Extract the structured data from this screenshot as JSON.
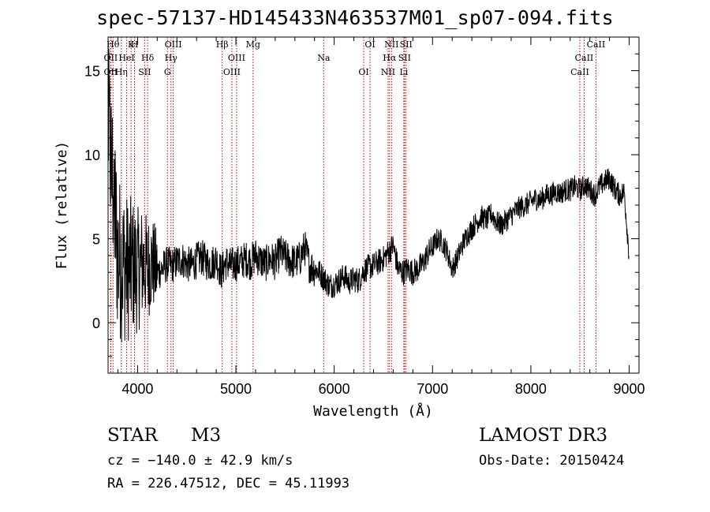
{
  "chart_data": {
    "type": "line",
    "title": "spec-57137-HD145433N463537M01_sp07-094.fits",
    "xlabel": "Wavelength (Å)",
    "ylabel": "Flux (relative)",
    "xlim": [
      3700,
      9100
    ],
    "ylim": [
      -3.0,
      17.0
    ],
    "x_ticks": [
      4000,
      5000,
      6000,
      7000,
      8000,
      9000
    ],
    "y_ticks": [
      0,
      5,
      10,
      15
    ],
    "x_tick_labels": [
      "4000",
      "5000",
      "6000",
      "7000",
      "8000",
      "9000"
    ],
    "y_tick_labels": [
      "0",
      "5",
      "10",
      "15"
    ],
    "series": [
      {
        "name": "flux",
        "x": [
          3700,
          3750,
          3800,
          3850,
          3900,
          3950,
          4000,
          4050,
          4100,
          4150,
          4200,
          4250,
          4300,
          4350,
          4400,
          4450,
          4500,
          4550,
          4600,
          4650,
          4700,
          4750,
          4800,
          4850,
          4900,
          4950,
          5000,
          5050,
          5100,
          5150,
          5200,
          5250,
          5300,
          5350,
          5400,
          5450,
          5500,
          5550,
          5600,
          5650,
          5700,
          5750,
          5800,
          5850,
          5900,
          5950,
          6000,
          6050,
          6100,
          6150,
          6200,
          6250,
          6300,
          6350,
          6400,
          6450,
          6500,
          6550,
          6600,
          6650,
          6700,
          6750,
          6800,
          6850,
          6900,
          6950,
          7000,
          7050,
          7100,
          7150,
          7200,
          7250,
          7300,
          7350,
          7400,
          7450,
          7500,
          7550,
          7600,
          7650,
          7700,
          7750,
          7800,
          7850,
          7900,
          7950,
          8000,
          8050,
          8100,
          8150,
          8200,
          8250,
          8300,
          8350,
          8400,
          8450,
          8500,
          8550,
          8600,
          8650,
          8700,
          8750,
          8800,
          8850,
          8900,
          8950,
          9000
        ],
        "y": [
          12,
          8,
          4,
          3.5,
          3.2,
          3.4,
          3.1,
          3.5,
          3.3,
          3.6,
          3.0,
          3.2,
          3.5,
          3.4,
          3.6,
          3.8,
          3.5,
          3.4,
          3.7,
          3.9,
          3.6,
          3.5,
          3.8,
          3.0,
          3.6,
          3.4,
          3.5,
          3.6,
          3.8,
          3.6,
          4.0,
          3.7,
          3.5,
          3.8,
          3.6,
          4.2,
          3.9,
          3.7,
          3.6,
          3.8,
          4.5,
          3.4,
          3.2,
          3.0,
          2.6,
          2.2,
          2.3,
          2.5,
          2.8,
          2.4,
          2.6,
          2.5,
          3.1,
          3.3,
          3.4,
          3.6,
          3.8,
          4.2,
          4.6,
          3.2,
          3.0,
          3.2,
          3.0,
          3.2,
          3.5,
          4.1,
          4.5,
          5.0,
          4.8,
          4.2,
          3.2,
          3.8,
          4.6,
          5.2,
          5.6,
          6.0,
          6.3,
          6.1,
          6.5,
          6.0,
          5.8,
          6.1,
          6.4,
          6.7,
          6.9,
          7.0,
          7.2,
          7.4,
          7.3,
          7.6,
          7.6,
          7.8,
          7.7,
          7.9,
          7.9,
          8.1,
          7.9,
          8.2,
          7.9,
          7.6,
          8.1,
          8.4,
          8.6,
          8.0,
          7.6,
          7.8,
          4.0
        ]
      }
    ],
    "line_markers": [
      {
        "label": "Hθ",
        "x": 3750
      },
      {
        "label": "OII",
        "x": 3727
      },
      {
        "label": "OII",
        "x": 3727
      },
      {
        "label": "K",
        "x": 3934
      },
      {
        "label": "HeI",
        "x": 3889
      },
      {
        "label": "Hη",
        "x": 3835
      },
      {
        "label": "H",
        "x": 3969
      },
      {
        "label": "Hδ",
        "x": 4102
      },
      {
        "label": "SII",
        "x": 4072
      },
      {
        "label": "OIII",
        "x": 4363
      },
      {
        "label": "Hγ",
        "x": 4340
      },
      {
        "label": "G",
        "x": 4304
      },
      {
        "label": "Hβ",
        "x": 4861
      },
      {
        "label": "OIII",
        "x": 5007
      },
      {
        "label": "OIII",
        "x": 4959
      },
      {
        "label": "Mg",
        "x": 5175
      },
      {
        "label": "Na",
        "x": 5893
      },
      {
        "label": "OI",
        "x": 6300
      },
      {
        "label": "OI",
        "x": 6364
      },
      {
        "label": "Hα",
        "x": 6563
      },
      {
        "label": "NII",
        "x": 6548
      },
      {
        "label": "NII",
        "x": 6583
      },
      {
        "label": "SII",
        "x": 6716
      },
      {
        "label": "Li",
        "x": 6708
      },
      {
        "label": "SII",
        "x": 6731
      },
      {
        "label": "CaII",
        "x": 8542
      },
      {
        "label": "CaII",
        "x": 8498
      },
      {
        "label": "CaII",
        "x": 8662
      }
    ]
  },
  "info": {
    "object_class": "STAR",
    "subclass": "M3",
    "survey": "LAMOST DR3",
    "redshift": "cz = −140.0 ± 42.9 km/s",
    "obs_date": "Obs-Date: 20150424",
    "coordinates": "RA = 226.47512, DEC =  45.11993"
  },
  "colors": {
    "axis": "#000000",
    "spectrum": "#000000",
    "marker_line": "#cc0000"
  }
}
